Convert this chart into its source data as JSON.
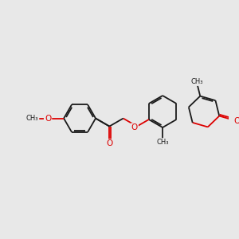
{
  "bg_color": "#e8e8e8",
  "bond_color": "#1a1a1a",
  "heteroatom_color": "#dd0000",
  "bond_lw": 1.3,
  "dbo": 0.035,
  "figsize": [
    3.0,
    3.0
  ],
  "dpi": 100,
  "xlim": [
    0,
    10
  ],
  "ylim": [
    0,
    10
  ],
  "ring_r": 0.7
}
